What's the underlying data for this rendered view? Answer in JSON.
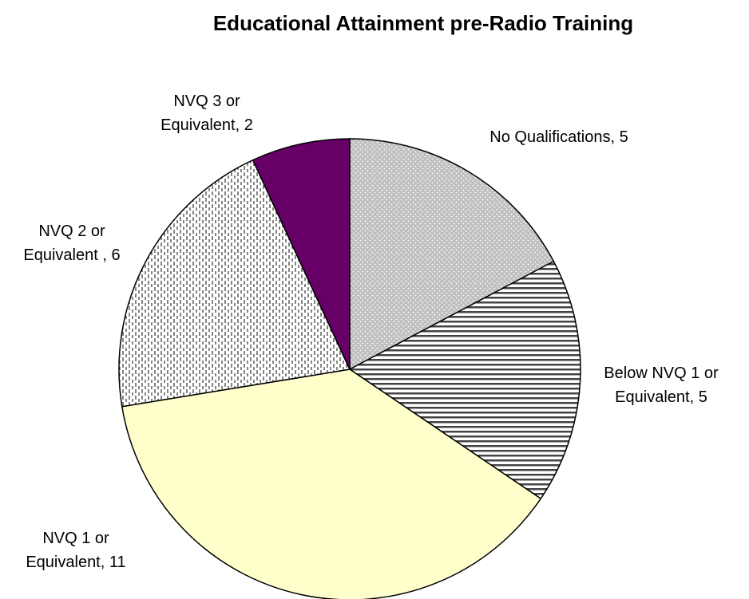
{
  "chart_data": {
    "type": "pie",
    "title": "Educational Attainment pre-Radio Training",
    "categories": [
      "No Qualifications",
      "Below NVQ 1 or Equivalent",
      "NVQ 1 or Equivalent",
      "NVQ 2 or Equivalent ",
      "NVQ 3 or Equivalent"
    ],
    "values": [
      5,
      5,
      11,
      6,
      2
    ],
    "colors": [
      "#c0c0c0",
      "#ffffff",
      "#ffffcc",
      "#ffffff",
      "#660066"
    ],
    "patterns": [
      "dots",
      "horizontal-stripes",
      "none",
      "vertical-dashes",
      "none"
    ],
    "label_separator": ", "
  }
}
